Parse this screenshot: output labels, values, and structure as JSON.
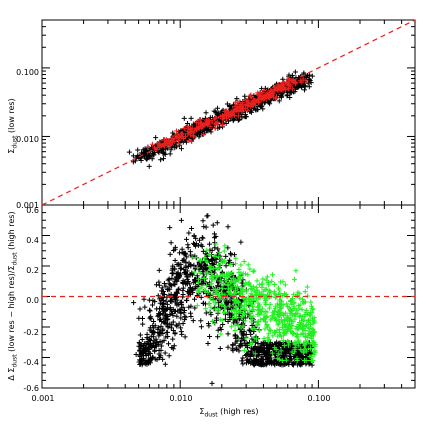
{
  "chart_data": [
    {
      "type": "scatter",
      "panel": "top",
      "xlabel": "Σdust (high res)",
      "ylabel": "Σdust (low res)",
      "ylabel_main": "Σ",
      "ylabel_sub": "dust",
      "ylabel_rest": " (low res)",
      "x_scale": "log",
      "y_scale": "log",
      "xlim": [
        0.001,
        0.5
      ],
      "ylim": [
        0.001,
        0.5
      ],
      "y_ticks": [
        "0.001",
        "0.010",
        "0.100"
      ],
      "reference_line": "y = x",
      "series": [
        {
          "marker": "+",
          "color": "#000000",
          "trend_start": [
            0.005,
            0.0049
          ],
          "trend_end": [
            0.08,
            0.07
          ],
          "scatter_dex": 0.09,
          "point_count": 900
        },
        {
          "marker": "+",
          "color": "#e8211e",
          "trend_start": [
            0.006,
            0.006
          ],
          "trend_end": [
            0.07,
            0.066
          ],
          "scatter_dex": 0.04,
          "point_count": 300
        }
      ]
    },
    {
      "type": "scatter",
      "panel": "bottom",
      "xlabel": "Σdust (high res)",
      "xlabel_main": "Σ",
      "xlabel_sub": "dust",
      "xlabel_rest": " (high res)",
      "ylabel": "Δ Σdust (low res − high res)/Σdust (high res)",
      "ylabel_parts": [
        "Δ Σ",
        "dust",
        " (low res − high res)/Σ",
        "dust",
        " (high res)"
      ],
      "x_scale": "log",
      "xlim": [
        0.001,
        0.5
      ],
      "ylim": [
        -0.6,
        0.6
      ],
      "x_ticks": [
        "0.001",
        "0.010",
        "0.100"
      ],
      "y_ticks": [
        "-0.6",
        "-0.4",
        "-0.2",
        "0.0",
        "0.2",
        "0.4",
        "0.6"
      ],
      "reference_line": "y = 0",
      "series": [
        {
          "marker": "+",
          "color": "#000000",
          "x_range": [
            0.005,
            0.09
          ],
          "peak_x": 0.015,
          "peak_y": 0.15,
          "spread": 0.16,
          "point_count": 1300,
          "outliers": [
            [
              0.017,
              -0.57
            ],
            [
              0.0048,
              -0.38
            ],
            [
              0.0046,
              -0.04
            ]
          ]
        },
        {
          "marker": "+",
          "color": "#22ee22",
          "x_range": [
            0.012,
            0.095
          ],
          "peak_x": 0.02,
          "peak_y": 0.15,
          "end_y": -0.25,
          "spread": 0.12,
          "point_count": 650
        }
      ]
    }
  ]
}
